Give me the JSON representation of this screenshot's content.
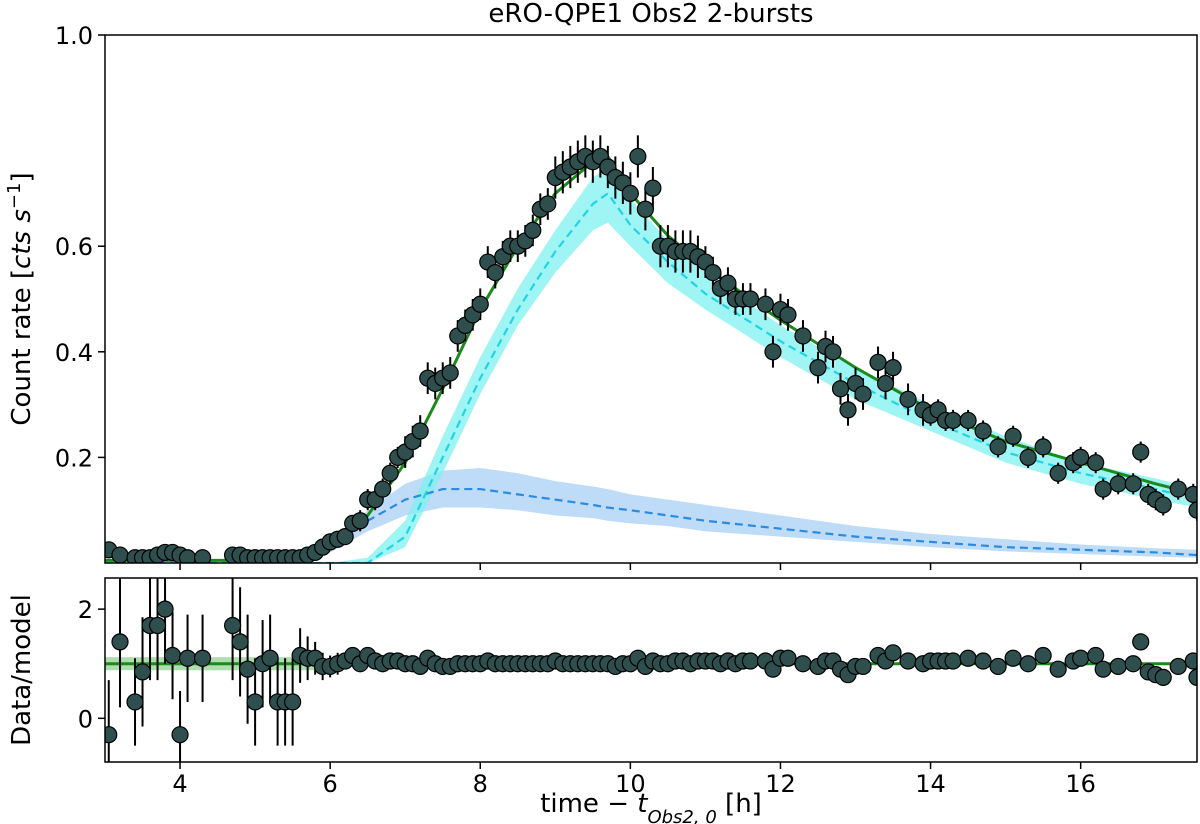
{
  "chart_data": [
    {
      "type": "scatter",
      "title": "eRO-QPE1 Obs2 2-bursts",
      "ylabel": [
        "Count rate [",
        "cts s",
        "−1",
        "]"
      ],
      "xlim": [
        3,
        17.55
      ],
      "xticks": [
        4,
        6,
        8,
        10,
        12,
        14,
        16
      ],
      "ylim": [
        0,
        1
      ],
      "yticks": [
        0.2,
        0.4,
        0.6,
        {
          "value": 1,
          "label": "1.0"
        }
      ],
      "points": {
        "color": "#2f4f4f",
        "x": [
          3.05,
          3.2,
          3.4,
          3.5,
          3.6,
          3.7,
          3.8,
          3.9,
          4.0,
          4.1,
          4.3,
          4.7,
          4.8,
          4.9,
          5.0,
          5.1,
          5.2,
          5.3,
          5.4,
          5.5,
          5.6,
          5.7,
          5.8,
          5.9,
          6.0,
          6.1,
          6.2,
          6.3,
          6.4,
          6.5,
          6.6,
          6.7,
          6.8,
          6.9,
          7.0,
          7.1,
          7.2,
          7.3,
          7.4,
          7.5,
          7.6,
          7.7,
          7.8,
          7.9,
          8.0,
          8.1,
          8.2,
          8.3,
          8.4,
          8.5,
          8.6,
          8.7,
          8.8,
          8.9,
          9.0,
          9.1,
          9.2,
          9.3,
          9.4,
          9.5,
          9.6,
          9.7,
          9.8,
          9.9,
          10.0,
          10.1,
          10.2,
          10.3,
          10.4,
          10.5,
          10.6,
          10.7,
          10.8,
          10.9,
          11.0,
          11.1,
          11.2,
          11.3,
          11.4,
          11.5,
          11.6,
          11.8,
          11.9,
          12.0,
          12.1,
          12.3,
          12.5,
          12.6,
          12.7,
          12.8,
          12.9,
          13.0,
          13.1,
          13.3,
          13.4,
          13.5,
          13.7,
          13.9,
          14.0,
          14.1,
          14.2,
          14.3,
          14.5,
          14.7,
          14.9,
          15.1,
          15.3,
          15.5,
          15.7,
          15.9,
          16.0,
          16.2,
          16.3,
          16.5,
          16.7,
          16.8,
          16.9,
          17.0,
          17.1,
          17.3,
          17.5,
          17.55
        ],
        "values": [
          0.025,
          0.015,
          0.01,
          0.01,
          0.01,
          0.015,
          0.02,
          0.02,
          0.015,
          0.01,
          0.01,
          0.015,
          0.015,
          0.01,
          0.01,
          0.01,
          0.01,
          0.01,
          0.01,
          0.01,
          0.01,
          0.015,
          0.02,
          0.03,
          0.04,
          0.045,
          0.05,
          0.075,
          0.08,
          0.12,
          0.12,
          0.14,
          0.17,
          0.2,
          0.21,
          0.23,
          0.25,
          0.35,
          0.34,
          0.35,
          0.36,
          0.43,
          0.45,
          0.47,
          0.49,
          0.57,
          0.55,
          0.58,
          0.6,
          0.6,
          0.61,
          0.63,
          0.67,
          0.68,
          0.73,
          0.74,
          0.75,
          0.76,
          0.77,
          0.76,
          0.77,
          0.75,
          0.73,
          0.72,
          0.7,
          0.77,
          0.67,
          0.71,
          0.6,
          0.6,
          0.59,
          0.59,
          0.59,
          0.58,
          0.57,
          0.55,
          0.52,
          0.53,
          0.5,
          0.5,
          0.5,
          0.49,
          0.4,
          0.48,
          0.47,
          0.43,
          0.37,
          0.41,
          0.4,
          0.33,
          0.29,
          0.34,
          0.32,
          0.38,
          0.34,
          0.37,
          0.31,
          0.29,
          0.28,
          0.29,
          0.27,
          0.27,
          0.27,
          0.25,
          0.22,
          0.24,
          0.2,
          0.22,
          0.17,
          0.19,
          0.2,
          0.19,
          0.14,
          0.15,
          0.15,
          0.21,
          0.13,
          0.12,
          0.11,
          0.14,
          0.13,
          0.1
        ],
        "errors": [
          0.01,
          0.01,
          0.01,
          0.01,
          0.01,
          0.01,
          0.01,
          0.01,
          0.01,
          0.01,
          0.01,
          0.01,
          0.01,
          0.01,
          0.01,
          0.01,
          0.01,
          0.01,
          0.01,
          0.01,
          0.01,
          0.01,
          0.01,
          0.01,
          0.015,
          0.015,
          0.015,
          0.015,
          0.02,
          0.02,
          0.02,
          0.02,
          0.02,
          0.02,
          0.03,
          0.03,
          0.03,
          0.03,
          0.03,
          0.03,
          0.03,
          0.03,
          0.03,
          0.03,
          0.03,
          0.03,
          0.03,
          0.03,
          0.03,
          0.03,
          0.03,
          0.03,
          0.03,
          0.03,
          0.04,
          0.04,
          0.04,
          0.04,
          0.04,
          0.04,
          0.04,
          0.04,
          0.04,
          0.04,
          0.04,
          0.04,
          0.04,
          0.04,
          0.04,
          0.04,
          0.04,
          0.04,
          0.04,
          0.04,
          0.03,
          0.03,
          0.03,
          0.03,
          0.03,
          0.03,
          0.03,
          0.03,
          0.03,
          0.03,
          0.03,
          0.03,
          0.03,
          0.03,
          0.03,
          0.03,
          0.03,
          0.03,
          0.03,
          0.03,
          0.03,
          0.03,
          0.03,
          0.03,
          0.02,
          0.02,
          0.02,
          0.02,
          0.02,
          0.02,
          0.02,
          0.02,
          0.02,
          0.02,
          0.02,
          0.02,
          0.02,
          0.02,
          0.02,
          0.02,
          0.02,
          0.02,
          0.02,
          0.02,
          0.02,
          0.02,
          0.02,
          0.02
        ]
      },
      "model_x": [
        3,
        4,
        5,
        5.5,
        6,
        6.5,
        7,
        7.5,
        8,
        8.5,
        9,
        9.5,
        9.7,
        10,
        10.5,
        11,
        12,
        13,
        14,
        15,
        16,
        17,
        17.55
      ],
      "models": [
        {
          "color": "#a8cff5",
          "band": true,
          "lower": [
            0,
            0,
            0,
            0,
            0.02,
            0.06,
            0.09,
            0.105,
            0.105,
            0.1,
            0.09,
            0.085,
            0.08,
            0.075,
            0.07,
            0.06,
            0.05,
            0.04,
            0.03,
            0.022,
            0.017,
            0.012,
            0.01
          ],
          "upper": [
            0,
            0,
            0,
            0.01,
            0.04,
            0.1,
            0.15,
            0.175,
            0.18,
            0.17,
            0.155,
            0.145,
            0.14,
            0.13,
            0.12,
            0.11,
            0.09,
            0.07,
            0.055,
            0.045,
            0.035,
            0.028,
            0.025
          ]
        },
        {
          "color": "#7ff0f0",
          "band": true,
          "lower": [
            0,
            0,
            0,
            0,
            0,
            0,
            0.03,
            0.17,
            0.32,
            0.45,
            0.55,
            0.63,
            0.645,
            0.6,
            0.53,
            0.48,
            0.39,
            0.31,
            0.25,
            0.19,
            0.15,
            0.12,
            0.105
          ],
          "upper": [
            0,
            0,
            0,
            0,
            0,
            0.01,
            0.08,
            0.24,
            0.39,
            0.52,
            0.63,
            0.73,
            0.75,
            0.69,
            0.61,
            0.55,
            0.45,
            0.37,
            0.3,
            0.24,
            0.19,
            0.16,
            0.14
          ]
        },
        {
          "color": "#2a8be0",
          "dash": true,
          "values": [
            0,
            0,
            0,
            0.005,
            0.03,
            0.08,
            0.12,
            0.14,
            0.14,
            0.13,
            0.12,
            0.11,
            0.105,
            0.1,
            0.09,
            0.08,
            0.065,
            0.05,
            0.04,
            0.03,
            0.025,
            0.02,
            0.015
          ]
        },
        {
          "color": "#22d3e6",
          "dash": true,
          "values": [
            0,
            0,
            0,
            0,
            0,
            0,
            0.05,
            0.2,
            0.35,
            0.48,
            0.59,
            0.68,
            0.7,
            0.64,
            0.57,
            0.51,
            0.42,
            0.34,
            0.27,
            0.21,
            0.17,
            0.14,
            0.12
          ]
        },
        {
          "color": "#1a8a1a",
          "values": [
            0.005,
            0.005,
            0.005,
            0.01,
            0.03,
            0.09,
            0.19,
            0.33,
            0.48,
            0.6,
            0.7,
            0.76,
            0.77,
            0.7,
            0.62,
            0.56,
            0.46,
            0.37,
            0.29,
            0.23,
            0.19,
            0.15,
            0.13
          ]
        }
      ]
    },
    {
      "type": "scatter",
      "ylabel": [
        "Data/model"
      ],
      "xlabel": [
        "time − ",
        "t",
        "Obs2, 0",
        " [h]"
      ],
      "xlim": [
        3,
        17.55
      ],
      "xticks": [
        4,
        6,
        8,
        10,
        12,
        14,
        16
      ],
      "ylim": [
        -0.8,
        2.57
      ],
      "yticks": [
        0,
        2
      ],
      "reference": 1,
      "reference_color": "#1a8a1a",
      "band": {
        "color": "#8fcf8f",
        "x": [
          3,
          5.8
        ],
        "lower": [
          0.88,
          0.88
        ],
        "upper": [
          1.12,
          1.12
        ]
      },
      "points": {
        "color": "#2f4f4f",
        "x": [
          3.05,
          3.2,
          3.4,
          3.5,
          3.6,
          3.7,
          3.8,
          3.9,
          4.0,
          4.1,
          4.3,
          4.7,
          4.8,
          4.9,
          5.0,
          5.1,
          5.2,
          5.3,
          5.4,
          5.5,
          5.6,
          5.7,
          5.8,
          5.9,
          6.0,
          6.1,
          6.2,
          6.3,
          6.4,
          6.5,
          6.6,
          6.7,
          6.8,
          6.9,
          7.0,
          7.1,
          7.2,
          7.3,
          7.4,
          7.5,
          7.6,
          7.7,
          7.8,
          7.9,
          8.0,
          8.1,
          8.2,
          8.3,
          8.4,
          8.5,
          8.6,
          8.7,
          8.8,
          8.9,
          9.0,
          9.1,
          9.2,
          9.3,
          9.4,
          9.5,
          9.6,
          9.7,
          9.8,
          9.9,
          10.0,
          10.1,
          10.2,
          10.3,
          10.4,
          10.5,
          10.6,
          10.7,
          10.8,
          10.9,
          11.0,
          11.1,
          11.2,
          11.3,
          11.4,
          11.5,
          11.6,
          11.8,
          11.9,
          12.0,
          12.1,
          12.3,
          12.5,
          12.6,
          12.7,
          12.8,
          12.9,
          13.0,
          13.1,
          13.3,
          13.4,
          13.5,
          13.7,
          13.9,
          14.0,
          14.1,
          14.2,
          14.3,
          14.5,
          14.7,
          14.9,
          15.1,
          15.3,
          15.5,
          15.7,
          15.9,
          16.0,
          16.2,
          16.3,
          16.5,
          16.7,
          16.8,
          16.9,
          17.0,
          17.1,
          17.3,
          17.5,
          17.55
        ],
        "values": [
          -0.3,
          1.4,
          0.3,
          0.85,
          1.7,
          1.7,
          2.0,
          1.15,
          -0.3,
          1.1,
          1.1,
          1.7,
          1.4,
          0.9,
          0.3,
          1.0,
          1.1,
          0.3,
          0.3,
          0.3,
          1.15,
          1.1,
          1.1,
          0.95,
          0.95,
          1.0,
          1.05,
          1.15,
          1.0,
          1.15,
          1.05,
          1.0,
          1.05,
          1.05,
          1.0,
          1.0,
          0.95,
          1.1,
          1.0,
          0.95,
          0.95,
          1.0,
          1.0,
          1.0,
          1.0,
          1.05,
          1.0,
          1.0,
          1.0,
          1.0,
          1.0,
          1.0,
          1.0,
          1.0,
          1.05,
          1.0,
          1.0,
          1.0,
          1.0,
          1.0,
          1.0,
          1.0,
          0.95,
          1.0,
          1.0,
          1.1,
          0.95,
          1.05,
          1.0,
          1.0,
          1.05,
          1.05,
          1.0,
          1.05,
          1.05,
          1.05,
          1.0,
          1.05,
          1.0,
          1.05,
          1.05,
          1.05,
          0.9,
          1.1,
          1.1,
          1.0,
          0.95,
          1.05,
          1.05,
          0.9,
          0.8,
          0.95,
          0.95,
          1.15,
          1.05,
          1.2,
          1.05,
          1.0,
          1.05,
          1.05,
          1.05,
          1.05,
          1.1,
          1.05,
          0.95,
          1.1,
          1.0,
          1.15,
          0.9,
          1.05,
          1.1,
          1.15,
          0.9,
          0.95,
          1.0,
          1.4,
          0.85,
          0.8,
          0.75,
          0.95,
          1.05,
          0.75
        ],
        "errors": [
          1.0,
          1.2,
          0.8,
          1.0,
          1.0,
          1.0,
          1.0,
          0.8,
          0.8,
          0.8,
          0.8,
          1.0,
          1.0,
          1.0,
          0.8,
          0.8,
          0.8,
          0.8,
          0.8,
          0.8,
          0.5,
          0.4,
          0.3,
          0.25,
          0.2,
          0.2,
          0.15,
          0.15,
          0.1,
          0.1,
          0.1,
          0.08,
          0.08,
          0.08,
          0.06,
          0.06,
          0.06,
          0.06,
          0.06,
          0.06,
          0.06,
          0.06,
          0.06,
          0.06,
          0.06,
          0.06,
          0.06,
          0.06,
          0.06,
          0.06,
          0.06,
          0.06,
          0.06,
          0.06,
          0.06,
          0.06,
          0.06,
          0.06,
          0.06,
          0.06,
          0.06,
          0.06,
          0.06,
          0.06,
          0.06,
          0.06,
          0.06,
          0.06,
          0.06,
          0.06,
          0.06,
          0.06,
          0.06,
          0.06,
          0.06,
          0.06,
          0.06,
          0.06,
          0.06,
          0.06,
          0.06,
          0.06,
          0.06,
          0.06,
          0.06,
          0.06,
          0.06,
          0.06,
          0.06,
          0.06,
          0.06,
          0.06,
          0.06,
          0.06,
          0.06,
          0.06,
          0.06,
          0.06,
          0.06,
          0.06,
          0.06,
          0.06,
          0.06,
          0.06,
          0.06,
          0.06,
          0.06,
          0.06,
          0.06,
          0.06,
          0.06,
          0.06,
          0.06,
          0.06,
          0.06,
          0.06,
          0.06,
          0.06,
          0.06,
          0.06,
          0.06,
          0.06
        ]
      }
    }
  ]
}
